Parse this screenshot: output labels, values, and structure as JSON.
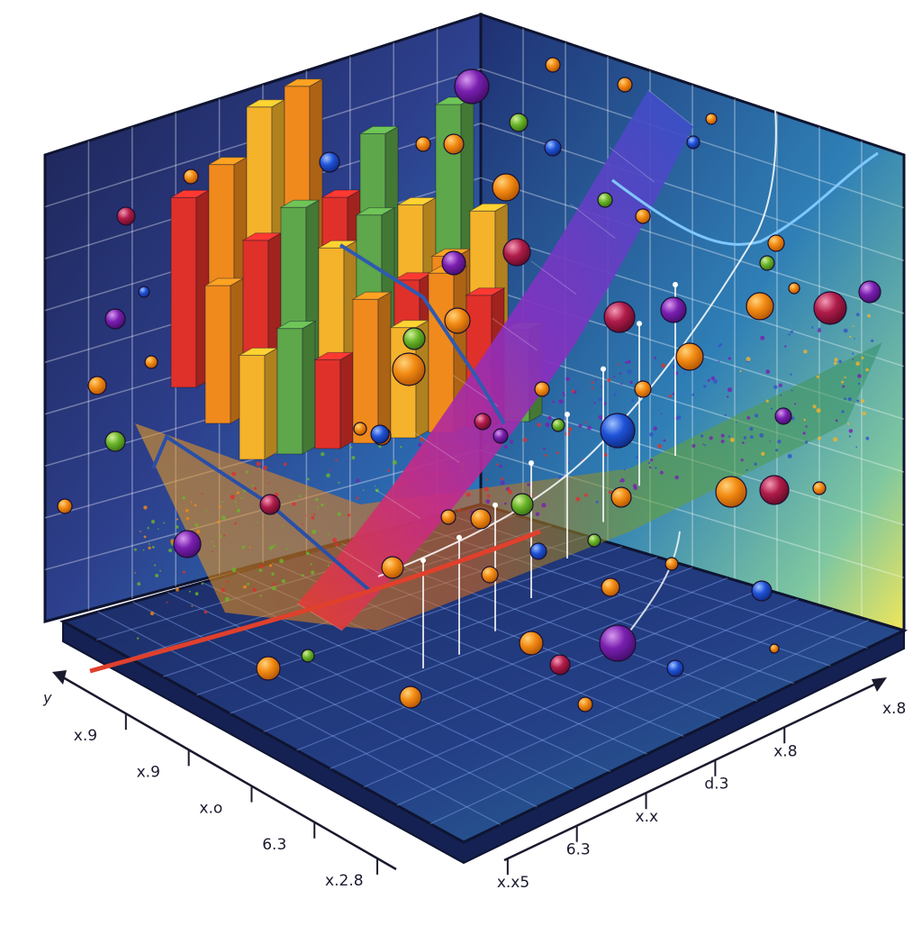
{
  "chart_data": {
    "type": "bar",
    "title": "",
    "xlabel": "",
    "ylabel": "",
    "grid": true,
    "legend": "none",
    "axis_left": {
      "label": "y",
      "ticks": [
        "x.9",
        "x.9",
        "x.o",
        "6.3",
        "x.2.8"
      ]
    },
    "axis_right": {
      "ticks": [
        "x.x5",
        "6.3",
        "x.x",
        "d.3",
        "x.8",
        "x.8"
      ]
    },
    "bars": [
      {
        "values": [
          62,
          71,
          88,
          93,
          55,
          74,
          49,
          80
        ]
      },
      {
        "values": [
          45,
          58,
          67,
          52,
          61,
          38,
          44,
          57
        ]
      },
      {
        "values": [
          34,
          41,
          29,
          47,
          36,
          52,
          43,
          30
        ]
      }
    ],
    "surface": {
      "line_values": [
        0.05,
        0.12,
        0.22,
        0.35,
        0.5,
        0.64,
        0.78,
        0.9
      ]
    },
    "palette": {
      "wall_dark": "#1c2a6b",
      "wall_mid": "#2f5fb0",
      "wall_light": "#3fa0c8",
      "wall_glow": "#e4e35a",
      "floor": "#1e2f6a",
      "bar_red": "#e0302a",
      "bar_orange": "#f08a1c",
      "bar_yellow": "#f4b32a",
      "bar_green": "#5ea74a",
      "surface_blue": "#3552c8",
      "surface_purple": "#8a2fc0",
      "surface_magenta": "#c42a8a",
      "dot_orange": "#f28a12",
      "dot_purple": "#7a1fb0",
      "dot_blue": "#1f52d8",
      "dot_green": "#6ab52a",
      "dot_crimson": "#b01c4a"
    }
  }
}
